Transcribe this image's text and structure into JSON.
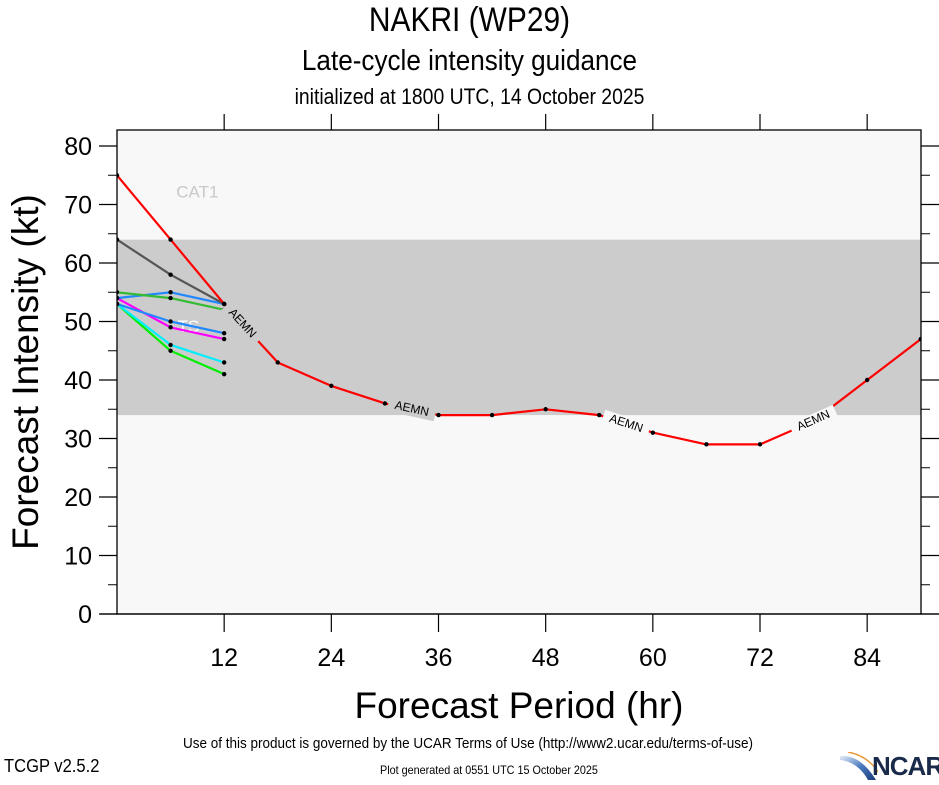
{
  "header": {
    "title": "NAKRI (WP29)",
    "subtitle": "Late-cycle intensity guidance",
    "initialized": "initialized at 1800 UTC, 14 October 2025"
  },
  "footer": {
    "terms": "Use of this product is governed by the UCAR Terms of Use (http://www2.ucar.edu/terms-of-use)",
    "version": "TCGP v2.5.2",
    "generated": "Plot generated at 0551 UTC   15 October 2025",
    "logo_text": "NCAR"
  },
  "chart_data": {
    "type": "line",
    "title": "NAKRI (WP29)",
    "xlabel": "Forecast Period (hr)",
    "ylabel": "Forecast Intensity (kt)",
    "xlim": [
      0,
      90
    ],
    "ylim": [
      0,
      82
    ],
    "xticks": [
      12,
      24,
      36,
      48,
      60,
      72,
      84
    ],
    "yticks": [
      0,
      10,
      20,
      30,
      40,
      50,
      60,
      70,
      80
    ],
    "grid": false,
    "bands": [
      {
        "name": "TS",
        "from": 34,
        "to": 64,
        "color": "#cccccc",
        "label": "TS",
        "label_x": 8,
        "label_y": 49
      },
      {
        "name": "CAT1",
        "from": 64,
        "to": 83,
        "color": "#f8f8f8",
        "label": "CAT1",
        "label_x": 9,
        "label_y": 72
      }
    ],
    "background_color": "#f8f8f8",
    "series": [
      {
        "name": "AEMN",
        "color": "#ff0000",
        "label": "AEMN",
        "x": [
          0,
          6,
          12,
          18,
          24,
          30,
          36,
          42,
          48,
          54,
          60,
          66,
          72,
          78,
          84,
          90
        ],
        "values": [
          75,
          64,
          53,
          43,
          39,
          36,
          34,
          34,
          35,
          34,
          31,
          29,
          29,
          33,
          40,
          47
        ]
      },
      {
        "name": "gray",
        "color": "#555555",
        "x": [
          0,
          6,
          12
        ],
        "values": [
          64,
          58,
          53
        ]
      },
      {
        "name": "green-a",
        "color": "#33bb33",
        "x": [
          0,
          6,
          12
        ],
        "values": [
          55,
          54,
          52
        ]
      },
      {
        "name": "blue-a",
        "color": "#2288ff",
        "x": [
          0,
          6,
          12
        ],
        "values": [
          54,
          55,
          53
        ]
      },
      {
        "name": "blue-b",
        "color": "#2288ff",
        "x": [
          0,
          6,
          12
        ],
        "values": [
          53,
          50,
          48
        ]
      },
      {
        "name": "magenta",
        "color": "#ff00ff",
        "x": [
          0,
          6,
          12
        ],
        "values": [
          54,
          49,
          47
        ]
      },
      {
        "name": "cyan",
        "color": "#00eeff",
        "x": [
          0,
          6,
          12
        ],
        "values": [
          53,
          46,
          43
        ]
      },
      {
        "name": "green-b",
        "color": "#00ee00",
        "x": [
          0,
          6,
          12
        ],
        "values": [
          53,
          45,
          41
        ]
      }
    ],
    "annotations": [
      {
        "text": "AEMN",
        "x": 14,
        "y": 50
      },
      {
        "text": "AEMN",
        "x": 33,
        "y": 35
      },
      {
        "text": "AEMN",
        "x": 57,
        "y": 33
      },
      {
        "text": "AEMN",
        "x": 78,
        "y": 35
      }
    ]
  }
}
